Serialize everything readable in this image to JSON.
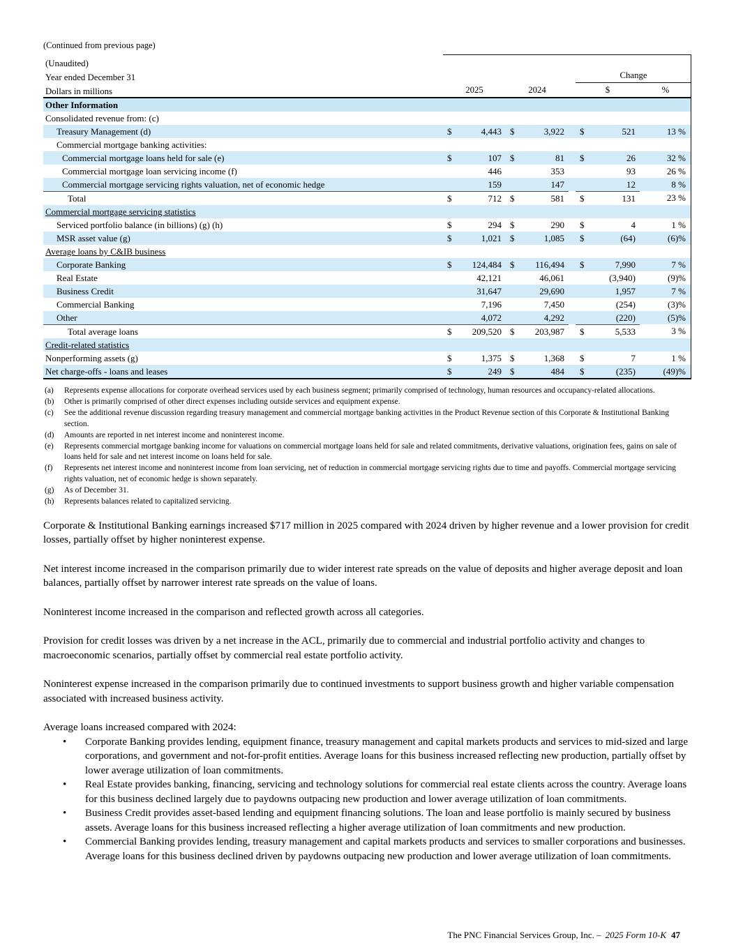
{
  "page": {
    "continued_note": "(Continued from previous page)",
    "footer": {
      "company": "The PNC Financial Services Group, Inc. –",
      "form": "2025 Form 10-K",
      "page_number": "47"
    }
  },
  "colors": {
    "row_shade": "#d3ebf9",
    "section_header_shade": "#c9e6f5",
    "heavy_rule": "#0b0b0b",
    "total_rule": "#4d4d4d"
  },
  "table": {
    "unaudited_label": "(Unaudited)",
    "period_label": "Year ended December 31",
    "units_label": "Dollars in millions",
    "change_label": "Change",
    "col_headers": {
      "y2025": "2025",
      "y2024": "2024",
      "chg_dollar": "$",
      "chg_pct": "%"
    },
    "section_title": "Other Information",
    "rows": [
      {
        "label": "Consolidated revenue from: (c)",
        "indent": 0,
        "shaded": false
      },
      {
        "label": "Treasury Management (d)",
        "indent": 1,
        "shaded": true,
        "dollar": true,
        "v2025": "4,443",
        "v2024": "3,922",
        "chg": "521",
        "pct": "13 %"
      },
      {
        "label": "Commercial mortgage banking activities:",
        "indent": 1,
        "shaded": false
      },
      {
        "label": "Commercial mortgage loans held for sale (e)",
        "indent": 2,
        "shaded": true,
        "dollar": true,
        "v2025": "107",
        "v2024": "81",
        "chg": "26",
        "pct": "32 %"
      },
      {
        "label": "Commercial mortgage loan servicing income (f)",
        "indent": 2,
        "shaded": false,
        "v2025": "446",
        "v2024": "353",
        "chg": "93",
        "pct": "26 %"
      },
      {
        "label": "Commercial mortgage servicing rights valuation, net of economic hedge",
        "indent": 2,
        "shaded": true,
        "v2025": "159",
        "v2024": "147",
        "chg": "12",
        "pct": "8 %"
      },
      {
        "label": "Total",
        "indent": 3,
        "shaded": false,
        "dollar": true,
        "v2025": "712",
        "v2024": "581",
        "chg": "131",
        "pct": "23 %",
        "rule_above": true
      },
      {
        "label": "Commercial mortgage servicing statistics",
        "indent": 0,
        "shaded": true,
        "underline": true
      },
      {
        "label": "Serviced portfolio balance (in billions) (g) (h)",
        "indent": 1,
        "shaded": false,
        "dollar": true,
        "v2025": "294",
        "v2024": "290",
        "chg": "4",
        "pct": "1 %"
      },
      {
        "label": "MSR asset value (g)",
        "indent": 1,
        "shaded": true,
        "dollar": true,
        "v2025": "1,021",
        "v2024": "1,085",
        "chg": "(64)",
        "pct": "(6)%"
      },
      {
        "label": "Average loans by C&IB business",
        "indent": 0,
        "shaded": false,
        "underline": true
      },
      {
        "label": "Corporate Banking",
        "indent": 1,
        "shaded": true,
        "dollar": true,
        "v2025": "124,484",
        "v2024": "116,494",
        "chg": "7,990",
        "pct": "7 %"
      },
      {
        "label": "Real Estate",
        "indent": 1,
        "shaded": false,
        "v2025": "42,121",
        "v2024": "46,061",
        "chg": "(3,940)",
        "pct": "(9)%"
      },
      {
        "label": "Business Credit",
        "indent": 1,
        "shaded": true,
        "v2025": "31,647",
        "v2024": "29,690",
        "chg": "1,957",
        "pct": "7 %"
      },
      {
        "label": "Commercial Banking",
        "indent": 1,
        "shaded": false,
        "v2025": "7,196",
        "v2024": "7,450",
        "chg": "(254)",
        "pct": "(3)%"
      },
      {
        "label": "Other",
        "indent": 1,
        "shaded": true,
        "v2025": "4,072",
        "v2024": "4,292",
        "chg": "(220)",
        "pct": "(5)%"
      },
      {
        "label": "Total average loans",
        "indent": 3,
        "shaded": false,
        "dollar": true,
        "v2025": "209,520",
        "v2024": "203,987",
        "chg": "5,533",
        "pct": "3 %",
        "rule_above": true
      },
      {
        "label": "Credit-related statistics",
        "indent": 0,
        "shaded": true,
        "underline": true
      },
      {
        "label": "Nonperforming assets (g)",
        "indent": 0,
        "shaded": false,
        "dollar": true,
        "v2025": "1,375",
        "v2024": "1,368",
        "chg": "7",
        "pct": "1 %"
      },
      {
        "label": "Net charge-offs - loans and leases",
        "indent": 0,
        "shaded": true,
        "dollar": true,
        "v2025": "249",
        "v2024": "484",
        "chg": "(235)",
        "pct": "(49)%"
      }
    ]
  },
  "footnotes": [
    {
      "marker": "(a)",
      "text": "Represents expense allocations for corporate overhead services used by each business segment; primarily comprised of technology, human resources and occupancy-related allocations."
    },
    {
      "marker": "(b)",
      "text": "Other is primarily comprised of other direct expenses including outside services and equipment expense."
    },
    {
      "marker": "(c)",
      "text": "See the additional revenue discussion regarding treasury management and commercial mortgage banking activities in the Product Revenue section of this Corporate & Institutional Banking section."
    },
    {
      "marker": "(d)",
      "text": "Amounts are reported in net interest income and noninterest income."
    },
    {
      "marker": "(e)",
      "text": "Represents commercial mortgage banking income for valuations on commercial mortgage loans held for sale and related commitments, derivative valuations, origination fees, gains on sale of loans held for sale and net interest income on loans held for sale."
    },
    {
      "marker": "(f)",
      "text": "Represents net interest income and noninterest income from loan servicing, net of reduction in commercial mortgage servicing rights due to time and payoffs. Commercial mortgage servicing rights valuation, net of economic hedge is shown separately."
    },
    {
      "marker": "(g)",
      "text": "As of December 31."
    },
    {
      "marker": "(h)",
      "text": "Represents balances related to capitalized servicing."
    }
  ],
  "paragraphs": [
    "Corporate & Institutional Banking earnings increased $717 million in 2025 compared with 2024 driven by higher revenue and a lower provision for credit losses, partially offset by higher noninterest expense.",
    "Net interest income increased in the comparison primarily due to wider interest rate spreads on the value of deposits and higher average deposit and loan balances, partially offset by narrower interest rate spreads on the value of loans.",
    "Noninterest income increased in the comparison and reflected growth across all categories.",
    "Provision for credit losses was driven by a net increase in the ACL, primarily due to commercial and industrial portfolio activity and changes to macroeconomic scenarios, partially offset by commercial real estate portfolio activity.",
    "Noninterest expense increased in the comparison primarily due to continued investments to support business growth and higher variable compensation associated with increased business activity."
  ],
  "bullet_intro": "Average loans increased compared with 2024:",
  "bullet_glyph": "•",
  "bullets": [
    "Corporate Banking provides lending, equipment finance, treasury management and capital markets products and services to mid-sized and large corporations, and government and not-for-profit entities. Average loans for this business increased reflecting new production, partially offset by lower average utilization of loan commitments.",
    "Real Estate provides banking, financing, servicing and technology solutions for commercial real estate clients across the country. Average loans for this business declined largely due to paydowns outpacing new production and lower average utilization of loan commitments.",
    "Business Credit provides asset-based lending and equipment financing solutions. The loan and lease portfolio is mainly secured by business assets. Average loans for this business increased reflecting a higher average utilization of loan commitments and new production.",
    "Commercial Banking provides lending, treasury management and capital markets products and services to smaller corporations and businesses. Average loans for this business declined driven by paydowns outpacing new production and lower average utilization of loan commitments."
  ]
}
